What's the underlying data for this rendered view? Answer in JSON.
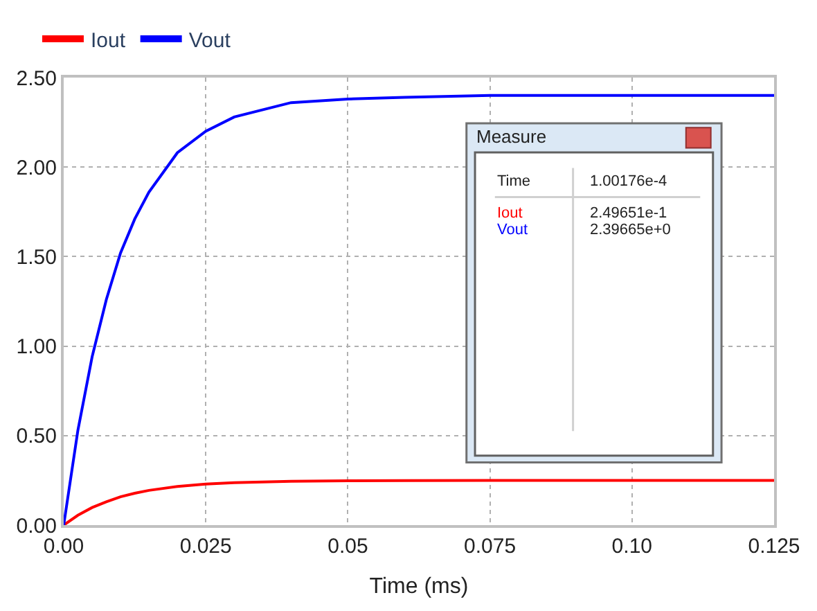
{
  "chart_data": {
    "type": "line",
    "xlabel": "Time (ms)",
    "x": [
      0,
      0.0025,
      0.005,
      0.0075,
      0.01,
      0.0125,
      0.015,
      0.02,
      0.025,
      0.03,
      0.04,
      0.05,
      0.06,
      0.075,
      0.1,
      0.125
    ],
    "series": [
      {
        "name": "Iout",
        "color": "#ff0000",
        "values": [
          0,
          0.055,
          0.098,
          0.13,
          0.158,
          0.178,
          0.194,
          0.216,
          0.229,
          0.237,
          0.245,
          0.248,
          0.249,
          0.25,
          0.25,
          0.25
        ]
      },
      {
        "name": "Vout",
        "color": "#0000ff",
        "values": [
          0,
          0.53,
          0.94,
          1.26,
          1.52,
          1.71,
          1.86,
          2.08,
          2.2,
          2.28,
          2.36,
          2.38,
          2.39,
          2.4,
          2.4,
          2.4
        ]
      }
    ],
    "xlim": [
      0,
      0.125
    ],
    "xticks": [
      {
        "value": 0,
        "label": "0.00"
      },
      0.025,
      0.05,
      0.075,
      {
        "value": 0.1,
        "label": "0.10"
      },
      0.125
    ],
    "ylim": [
      0,
      2.5
    ],
    "yticks": [
      {
        "value": 0,
        "label": "0.00"
      },
      {
        "value": 0.5,
        "label": "0.50"
      },
      {
        "value": 1,
        "label": "1.00"
      },
      {
        "value": 1.5,
        "label": "1.50"
      },
      {
        "value": 2,
        "label": "2.00"
      },
      {
        "value": 2.5,
        "label": "2.50"
      }
    ],
    "grid": true,
    "legend": "top left",
    "marker": "none",
    "line_style": "solid",
    "annotations": [
      "Measure",
      "Time",
      "1.00176e-4",
      "Iout",
      "2.49651e-1",
      "Vout",
      "2.39665e+0"
    ]
  }
}
